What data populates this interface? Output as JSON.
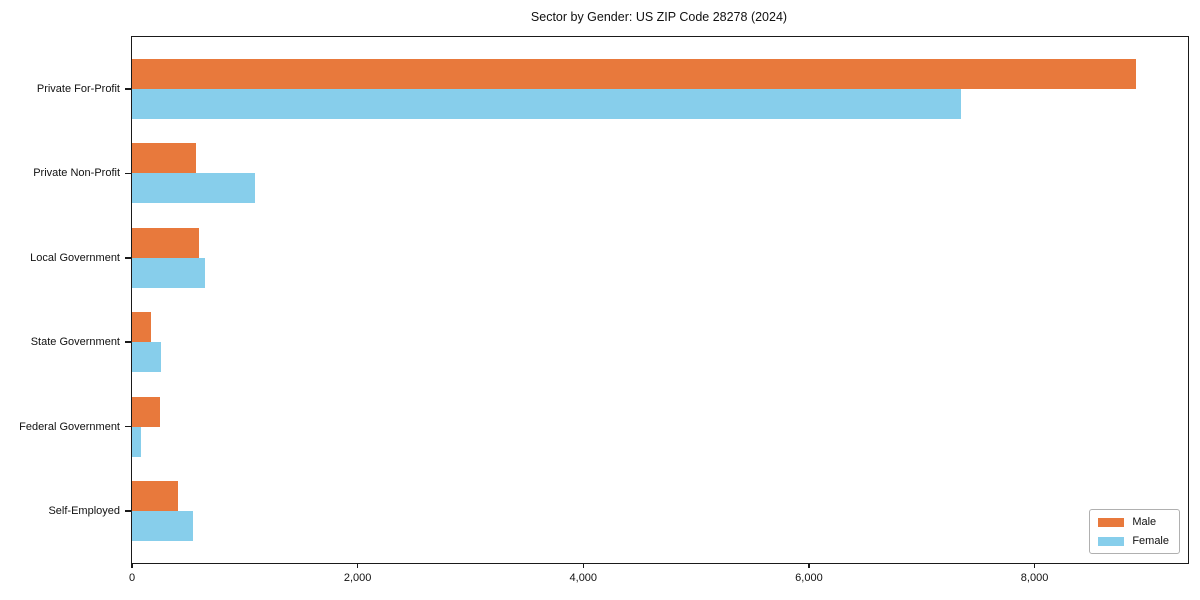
{
  "chart_data": {
    "type": "bar",
    "orientation": "horizontal",
    "title": "Sector by Gender: US ZIP Code 28278 (2024)",
    "categories": [
      "Private For-Profit",
      "Private Non-Profit",
      "Local Government",
      "State Government",
      "Federal Government",
      "Self-Employed"
    ],
    "series": [
      {
        "name": "Male",
        "color": "#e8793c",
        "values": [
          8900,
          570,
          590,
          170,
          250,
          410
        ]
      },
      {
        "name": "Female",
        "color": "#87ceeb",
        "values": [
          7350,
          1090,
          650,
          260,
          80,
          540
        ]
      }
    ],
    "xlabel": "",
    "ylabel": "",
    "xlim": [
      0,
      9360
    ],
    "xticks": [
      0,
      2000,
      4000,
      6000,
      8000
    ],
    "xtick_labels": [
      "0",
      "2,000",
      "4,000",
      "6,000",
      "8,000"
    ],
    "grid": false,
    "legend": {
      "position": "lower right"
    },
    "axis_color": "#1a1a1a",
    "background": "#ffffff"
  }
}
